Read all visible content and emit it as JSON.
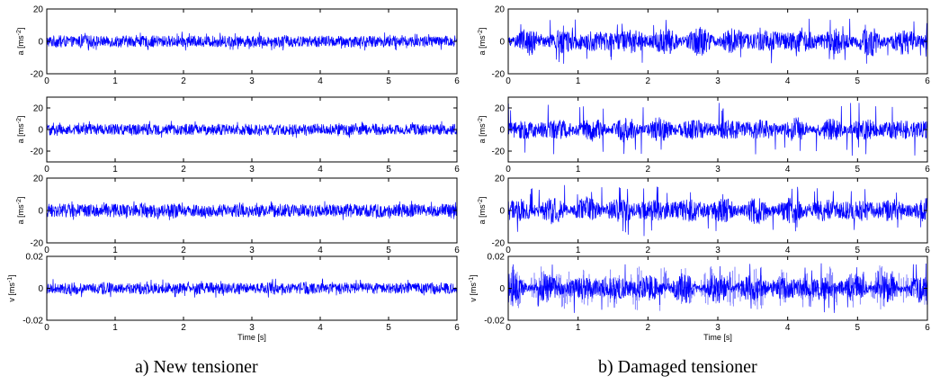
{
  "captions": {
    "a": "a) New tensioner",
    "b": "b) Damaged tensioner"
  },
  "colors": {
    "signal": "#0000ff",
    "signal_light": "#6b6bff",
    "axes": "#000000"
  },
  "chart_data": [
    {
      "type": "line",
      "column": "a",
      "row": 0,
      "ylabel": "a [ms",
      "ylabel_sup": "-2",
      "ylabel_end": "]",
      "xlim": [
        0,
        6
      ],
      "ylim": [
        -20,
        20
      ],
      "xticks": [
        "0",
        "1",
        "2",
        "3",
        "4",
        "5",
        "6"
      ],
      "yticks": [
        "20",
        "0",
        "-20"
      ],
      "signal": {
        "amplitude": 3.5,
        "modulation": 0.1,
        "peak": 6
      },
      "xlabel": ""
    },
    {
      "type": "line",
      "column": "a",
      "row": 1,
      "ylabel": "a [ms",
      "ylabel_sup": "-2",
      "ylabel_end": "]",
      "xlim": [
        0,
        6
      ],
      "ylim": [
        -30,
        30
      ],
      "xticks": [
        "0",
        "1",
        "2",
        "3",
        "4",
        "5",
        "6"
      ],
      "yticks": [
        "20",
        "0",
        "-20"
      ],
      "signal": {
        "amplitude": 5,
        "modulation": 0.1,
        "peak": 8
      },
      "xlabel": ""
    },
    {
      "type": "line",
      "column": "a",
      "row": 2,
      "ylabel": "a [ms",
      "ylabel_sup": "-2",
      "ylabel_end": "]",
      "xlim": [
        0,
        6
      ],
      "ylim": [
        -20,
        20
      ],
      "xticks": [
        "0",
        "1",
        "2",
        "3",
        "4",
        "5",
        "6"
      ],
      "yticks": [
        "20",
        "0",
        "-20"
      ],
      "signal": {
        "amplitude": 4,
        "modulation": 0.1,
        "peak": 6
      },
      "xlabel": ""
    },
    {
      "type": "line",
      "column": "a",
      "row": 3,
      "ylabel": "v [ms",
      "ylabel_sup": "-1",
      "ylabel_end": "]",
      "xlim": [
        0,
        6
      ],
      "ylim": [
        -0.02,
        0.02
      ],
      "xticks": [
        "0",
        "1",
        "2",
        "3",
        "4",
        "5",
        "6"
      ],
      "yticks": [
        "0.02",
        "0",
        "-0.02"
      ],
      "signal": {
        "amplitude": 0.0035,
        "modulation": 0.15,
        "peak": 0.006
      },
      "xlabel": "Time [s]"
    },
    {
      "type": "line",
      "column": "b",
      "row": 0,
      "ylabel": "a [ms",
      "ylabel_sup": "-2",
      "ylabel_end": "]",
      "xlim": [
        0,
        6
      ],
      "ylim": [
        -20,
        20
      ],
      "xticks": [
        "0",
        "1",
        "2",
        "3",
        "4",
        "5",
        "6"
      ],
      "yticks": [
        "20",
        "0",
        "-20"
      ],
      "signal": {
        "amplitude": 6,
        "modulation": 0.55,
        "peak": 14
      },
      "xlabel": ""
    },
    {
      "type": "line",
      "column": "b",
      "row": 1,
      "ylabel": "a [ms",
      "ylabel_sup": "-2",
      "ylabel_end": "]",
      "xlim": [
        0,
        6
      ],
      "ylim": [
        -30,
        30
      ],
      "xticks": [
        "0",
        "1",
        "2",
        "3",
        "4",
        "5",
        "6"
      ],
      "yticks": [
        "20",
        "0",
        "-20"
      ],
      "signal": {
        "amplitude": 8,
        "modulation": 0.6,
        "peak": 25
      },
      "xlabel": ""
    },
    {
      "type": "line",
      "column": "b",
      "row": 2,
      "ylabel": "a [ms",
      "ylabel_sup": "-2",
      "ylabel_end": "]",
      "xlim": [
        0,
        6
      ],
      "ylim": [
        -20,
        20
      ],
      "xticks": [
        "0",
        "1",
        "2",
        "3",
        "4",
        "5",
        "6"
      ],
      "yticks": [
        "20",
        "0",
        "-20"
      ],
      "signal": {
        "amplitude": 6,
        "modulation": 0.5,
        "peak": 16
      },
      "xlabel": ""
    },
    {
      "type": "line",
      "column": "b",
      "row": 3,
      "ylabel": "v [ms",
      "ylabel_sup": "-1",
      "ylabel_end": "]",
      "xlim": [
        0,
        6
      ],
      "ylim": [
        -0.02,
        0.02
      ],
      "xticks": [
        "0",
        "1",
        "2",
        "3",
        "4",
        "5",
        "6"
      ],
      "yticks": [
        "0.02",
        "0",
        "-0.02"
      ],
      "signal": {
        "amplitude": 0.006,
        "modulation": 0.7,
        "peak": 0.016
      },
      "xlabel": "Time [s]"
    }
  ]
}
